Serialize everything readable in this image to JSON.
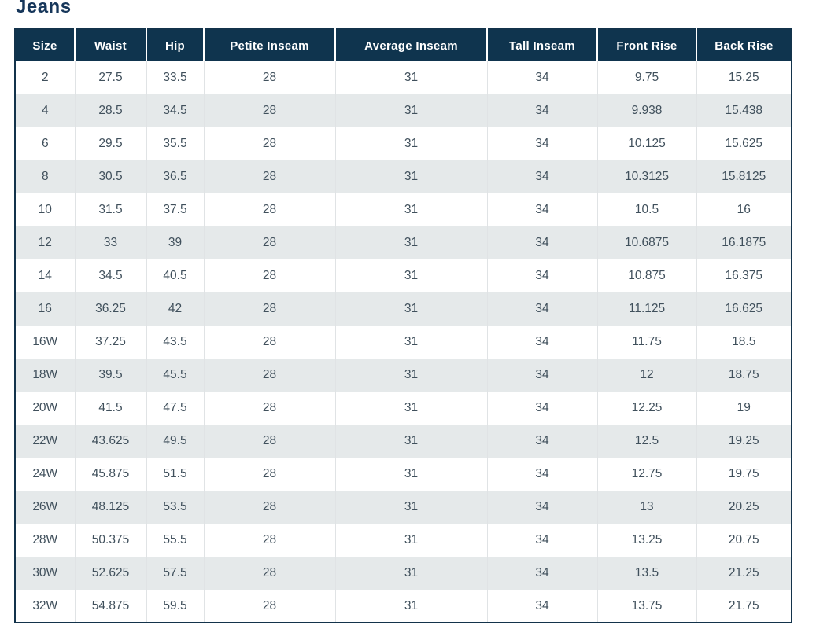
{
  "page_title": "Jeans",
  "table": {
    "columns": [
      "Size",
      "Waist",
      "Hip",
      "Petite Inseam",
      "Average Inseam",
      "Tall Inseam",
      "Front Rise",
      "Back Rise"
    ],
    "rows": [
      [
        "2",
        "27.5",
        "33.5",
        "28",
        "31",
        "34",
        "9.75",
        "15.25"
      ],
      [
        "4",
        "28.5",
        "34.5",
        "28",
        "31",
        "34",
        "9.938",
        "15.438"
      ],
      [
        "6",
        "29.5",
        "35.5",
        "28",
        "31",
        "34",
        "10.125",
        "15.625"
      ],
      [
        "8",
        "30.5",
        "36.5",
        "28",
        "31",
        "34",
        "10.3125",
        "15.8125"
      ],
      [
        "10",
        "31.5",
        "37.5",
        "28",
        "31",
        "34",
        "10.5",
        "16"
      ],
      [
        "12",
        "33",
        "39",
        "28",
        "31",
        "34",
        "10.6875",
        "16.1875"
      ],
      [
        "14",
        "34.5",
        "40.5",
        "28",
        "31",
        "34",
        "10.875",
        "16.375"
      ],
      [
        "16",
        "36.25",
        "42",
        "28",
        "31",
        "34",
        "11.125",
        "16.625"
      ],
      [
        "16W",
        "37.25",
        "43.5",
        "28",
        "31",
        "34",
        "11.75",
        "18.5"
      ],
      [
        "18W",
        "39.5",
        "45.5",
        "28",
        "31",
        "34",
        "12",
        "18.75"
      ],
      [
        "20W",
        "41.5",
        "47.5",
        "28",
        "31",
        "34",
        "12.25",
        "19"
      ],
      [
        "22W",
        "43.625",
        "49.5",
        "28",
        "31",
        "34",
        "12.5",
        "19.25"
      ],
      [
        "24W",
        "45.875",
        "51.5",
        "28",
        "31",
        "34",
        "12.75",
        "19.75"
      ],
      [
        "26W",
        "48.125",
        "53.5",
        "28",
        "31",
        "34",
        "13",
        "20.25"
      ],
      [
        "28W",
        "50.375",
        "55.5",
        "28",
        "31",
        "34",
        "13.25",
        "20.75"
      ],
      [
        "30W",
        "52.625",
        "57.5",
        "28",
        "31",
        "34",
        "13.5",
        "21.25"
      ],
      [
        "32W",
        "54.875",
        "59.5",
        "28",
        "31",
        "34",
        "13.75",
        "21.75"
      ]
    ]
  },
  "colors": {
    "header_bg": "#0f344e",
    "header_text": "#ffffff",
    "stripe_bg": "#e5e9ea",
    "title_text": "#16365a",
    "cell_text": "#40505c",
    "table_border": "#13334b",
    "cell_divider": "#e0e3e5",
    "page_bg": "#ffffff"
  }
}
